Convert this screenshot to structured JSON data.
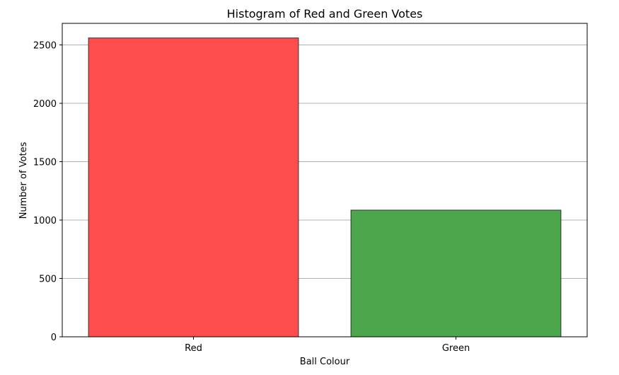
{
  "chart_data": {
    "type": "bar",
    "title": "Histogram of Red and Green Votes",
    "xlabel": "Ball Colour",
    "ylabel": "Number of Votes",
    "categories": [
      "Red",
      "Green"
    ],
    "values": [
      2560,
      1085
    ],
    "colors": [
      "#ff4c4c",
      "#4ca64c"
    ],
    "edge_color": "#333333",
    "ylim": [
      0,
      2685
    ],
    "yticks": [
      0,
      500,
      1000,
      1500,
      2000,
      2500
    ],
    "grid": "y-major",
    "grid_color": "#b0b0b0"
  }
}
